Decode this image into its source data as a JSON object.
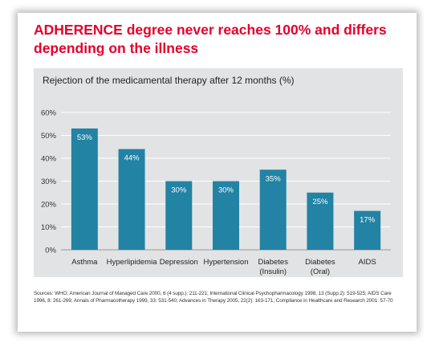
{
  "headline": "ADHERENCE degree never reaches 100% and differs depending on the illness",
  "chart_title": "Rejection of the medicamental therapy after 12 months (%)",
  "sources": "Sources: WHO; American Journal of Managed Care 2000, 6 (4 supp.): 211-221; International Clinical Psychopharmacology 1998, 13 (Supp.2): 519-525; AIDS Care 1996, 8: 261-269; Annals of Pharmacotherapy 1999, 33: 531-540; Advances in Therapy 2005, 22(2): 163-171; Compliance in Healthcare and Research 2001: 57-70",
  "colors": {
    "bar": "#2283a4",
    "headline": "#e4002b",
    "panel": "#e2e3e4"
  },
  "chart_data": {
    "type": "bar",
    "title": "Rejection of the medicamental therapy after 12 months (%)",
    "categories": [
      [
        "Asthma"
      ],
      [
        "Hyperlipidemia"
      ],
      [
        "Depression"
      ],
      [
        "Hypertension"
      ],
      [
        "Diabetes",
        "(Insulin)"
      ],
      [
        "Diabetes",
        "(Oral)"
      ],
      [
        "AIDS"
      ]
    ],
    "values": [
      53,
      44,
      30,
      30,
      35,
      25,
      17
    ],
    "value_labels": [
      "53%",
      "44%",
      "30%",
      "30%",
      "35%",
      "25%",
      "17%"
    ],
    "yticks": [
      "0%",
      "10%",
      "20%",
      "30%",
      "40%",
      "50%",
      "60%"
    ],
    "ylim": [
      0,
      60
    ],
    "grid": true,
    "legend": "none"
  }
}
